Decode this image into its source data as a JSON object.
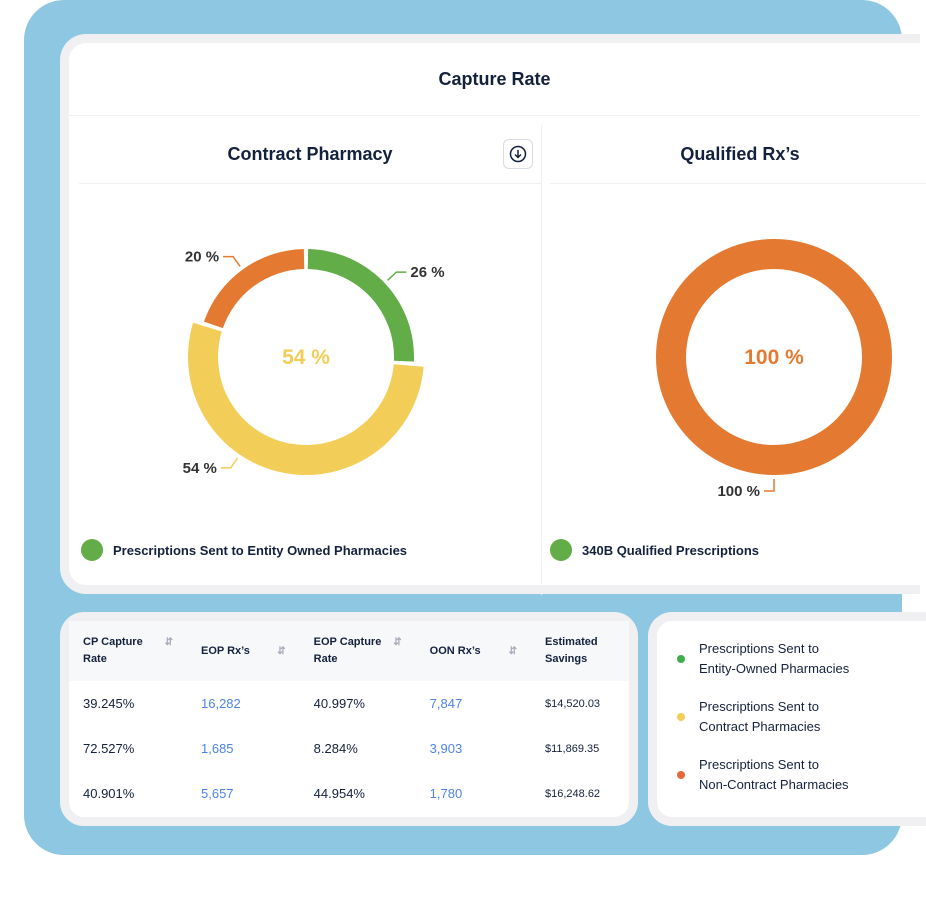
{
  "header": {
    "title": "Capture Rate"
  },
  "panels": [
    {
      "title": "Contract Pharmacy",
      "legend": "Prescriptions Sent to Entity Owned Pharmacies",
      "center": "54 %"
    },
    {
      "title": "Qualified Rx’s",
      "legend": "340B Qualified Prescriptions",
      "center": "100 %"
    }
  ],
  "chart_data": [
    {
      "type": "pie",
      "title": "Contract Pharmacy",
      "categories": [
        "Entity-Owned",
        "Contract",
        "Non-Contract"
      ],
      "values": [
        26,
        54,
        20
      ],
      "labels": [
        "26 %",
        "54 %",
        "20 %"
      ],
      "colors": [
        "#62ad48",
        "#f2cd58",
        "#e47a31"
      ],
      "center_label": "54 %"
    },
    {
      "type": "pie",
      "title": "Qualified Rx’s",
      "values": [
        100
      ],
      "labels": [
        "100 %"
      ],
      "colors": [
        "#e47a31"
      ],
      "center_label": "100 %"
    }
  ],
  "table": {
    "headers": [
      "CP Capture Rate",
      "EOP Rx’s",
      "EOP Capture Rate",
      "OON Rx’s",
      "Estimated Savings"
    ],
    "rows": [
      [
        "39.245%",
        "16,282",
        "40.997%",
        "7,847",
        "$14,520.03"
      ],
      [
        "72.527%",
        "1,685",
        "8.284%",
        "3,903",
        "$11,869.35"
      ],
      [
        "40.901%",
        "5,657",
        "44.954%",
        "1,780",
        "$16,248.62"
      ]
    ]
  },
  "legend": [
    {
      "line1": "Prescriptions Sent to",
      "line2": "Entity-Owned Pharmacies",
      "color": "#3fae49"
    },
    {
      "line1": "Prescriptions Sent to",
      "line2": "Contract Pharmacies",
      "color": "#f2cd58"
    },
    {
      "line1": "Prescriptions Sent to",
      "line2": "Non-Contract Pharmacies",
      "color": "#e8673a"
    }
  ]
}
